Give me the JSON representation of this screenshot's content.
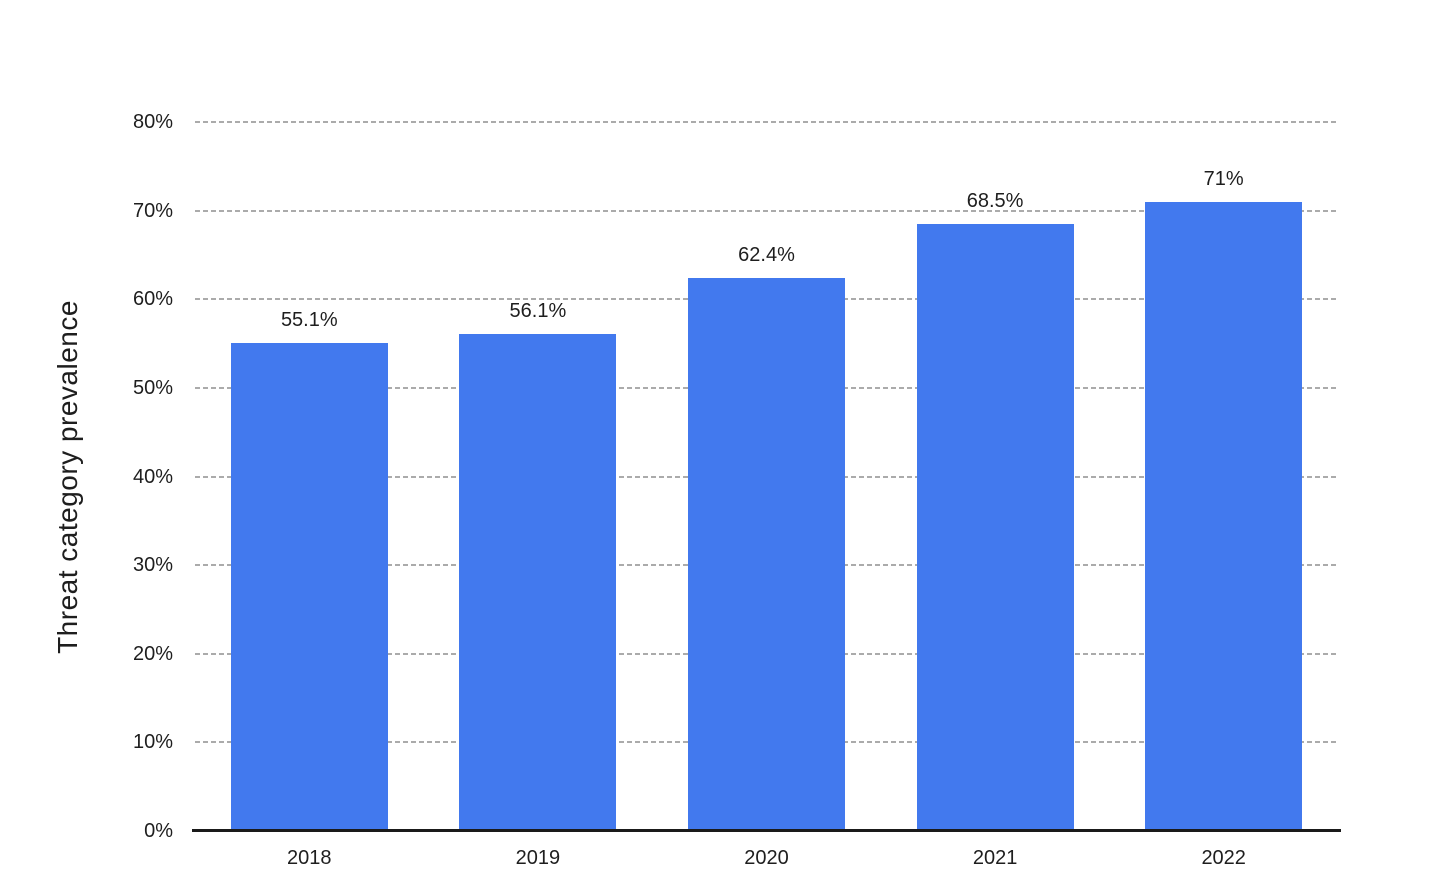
{
  "chart_data": {
    "type": "bar",
    "title": "",
    "xlabel": "",
    "ylabel": "Threat category prevalence",
    "categories": [
      "2018",
      "2019",
      "2020",
      "2021",
      "2022"
    ],
    "values": [
      55.1,
      56.1,
      62.4,
      68.5,
      71
    ],
    "value_labels": [
      "55.1%",
      "56.1%",
      "62.4%",
      "68.5%",
      "71%"
    ],
    "ylim": [
      0,
      80
    ],
    "y_ticks": [
      {
        "value": 0,
        "label": "0%"
      },
      {
        "value": 10,
        "label": "10%"
      },
      {
        "value": 20,
        "label": "20%"
      },
      {
        "value": 30,
        "label": "30%"
      },
      {
        "value": 40,
        "label": "40%"
      },
      {
        "value": 50,
        "label": "50%"
      },
      {
        "value": 60,
        "label": "60%"
      },
      {
        "value": 70,
        "label": "70%"
      },
      {
        "value": 80,
        "label": "80%"
      }
    ],
    "grid": "horizontal-dashed",
    "legend": "none",
    "colors": {
      "bar": "#4279EE",
      "gridline": "#ABABAB",
      "axis_line": "#1A1A1A",
      "text": "#1E1E1E",
      "background": "#FFFFFF"
    }
  }
}
